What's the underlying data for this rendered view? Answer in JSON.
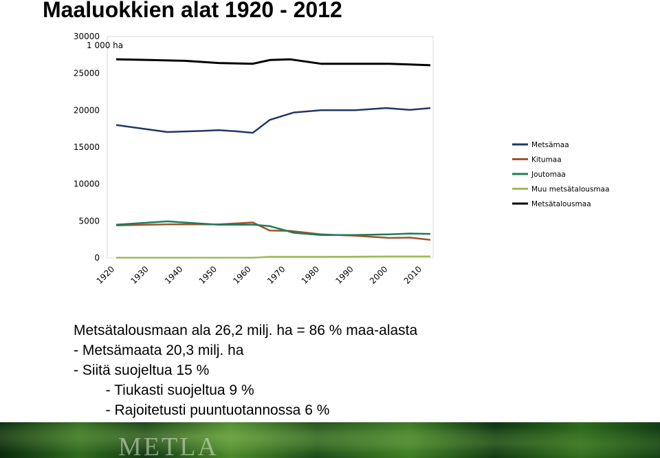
{
  "title": "Maaluokkien alat 1920 - 2012",
  "chart_data": {
    "type": "line",
    "title": "",
    "unit_label": "1 000 ha",
    "xlabel": "",
    "ylabel": "",
    "ylim": [
      0,
      30000
    ],
    "xlim": [
      1920,
      2012
    ],
    "y_ticks": [
      0,
      5000,
      10000,
      15000,
      20000,
      25000,
      30000
    ],
    "x_ticks": [
      "1920",
      "1930",
      "1940",
      "1950",
      "1960",
      "1970",
      "1980",
      "1990",
      "2000",
      "2010"
    ],
    "grid": false,
    "legend_position": "right",
    "series": [
      {
        "name": "Metsämaa",
        "color": "#1f3864",
        "points": [
          [
            1920,
            18000
          ],
          [
            1928,
            17500
          ],
          [
            1935,
            17050
          ],
          [
            1945,
            17200
          ],
          [
            1950,
            17300
          ],
          [
            1955,
            17150
          ],
          [
            1960,
            16950
          ],
          [
            1965,
            18700
          ],
          [
            1972,
            19700
          ],
          [
            1980,
            20000
          ],
          [
            1990,
            20000
          ],
          [
            1999,
            20300
          ],
          [
            2006,
            20050
          ],
          [
            2012,
            20300
          ]
        ]
      },
      {
        "name": "Kitumaa",
        "color": "#a0522d",
        "points": [
          [
            1920,
            4400
          ],
          [
            1935,
            4550
          ],
          [
            1950,
            4550
          ],
          [
            1960,
            4800
          ],
          [
            1965,
            3700
          ],
          [
            1971,
            3650
          ],
          [
            1980,
            3200
          ],
          [
            1990,
            3000
          ],
          [
            2000,
            2700
          ],
          [
            2006,
            2750
          ],
          [
            2012,
            2450
          ]
        ]
      },
      {
        "name": "Joutomaa",
        "color": "#1e7b5a",
        "points": [
          [
            1920,
            4500
          ],
          [
            1935,
            4950
          ],
          [
            1950,
            4500
          ],
          [
            1960,
            4500
          ],
          [
            1965,
            4300
          ],
          [
            1972,
            3400
          ],
          [
            1980,
            3100
          ],
          [
            1990,
            3100
          ],
          [
            2000,
            3200
          ],
          [
            2006,
            3300
          ],
          [
            2012,
            3250
          ]
        ]
      },
      {
        "name": "Muu metsätalousmaa",
        "color": "#9bbb59",
        "points": [
          [
            1920,
            20
          ],
          [
            1950,
            20
          ],
          [
            1960,
            20
          ],
          [
            1965,
            150
          ],
          [
            1980,
            150
          ],
          [
            2000,
            200
          ],
          [
            2012,
            200
          ]
        ]
      },
      {
        "name": "Metsätalousmaa",
        "color": "#000000",
        "points": [
          [
            1920,
            26900
          ],
          [
            1930,
            26800
          ],
          [
            1940,
            26700
          ],
          [
            1950,
            26400
          ],
          [
            1960,
            26300
          ],
          [
            1965,
            26800
          ],
          [
            1971,
            26900
          ],
          [
            1980,
            26300
          ],
          [
            1990,
            26300
          ],
          [
            2000,
            26300
          ],
          [
            2006,
            26200
          ],
          [
            2012,
            26100
          ]
        ]
      }
    ]
  },
  "notes": {
    "line1": "Metsätalousmaan ala 26,2 milj. ha = 86 % maa-alasta",
    "line2": "- Metsämaata 20,3 milj. ha",
    "line3": "- Siitä suojeltua 15 %",
    "line4": "        - Tiukasti suojeltua 9 %",
    "line5": "        - Rajoitetusti puuntuotannossa 6 %"
  },
  "footer": {
    "logo_text": "METLA"
  }
}
